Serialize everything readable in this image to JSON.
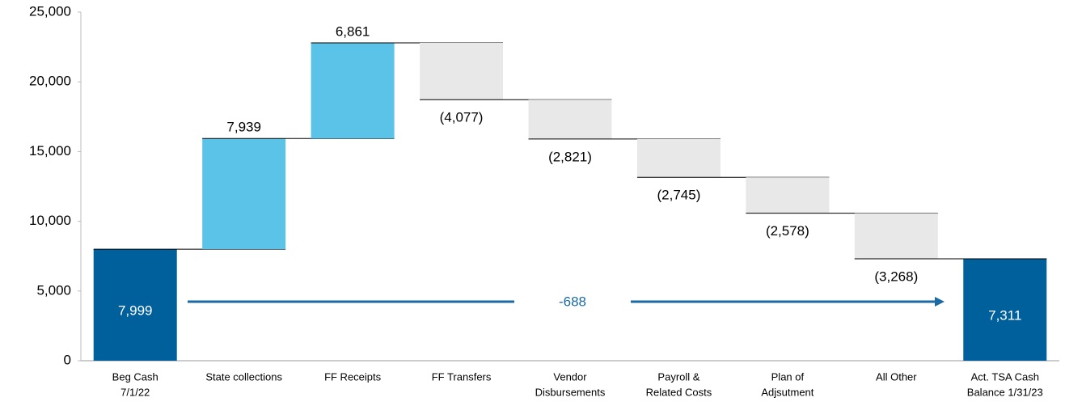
{
  "chart_data": {
    "type": "waterfall",
    "categories": [
      [
        "Beg Cash",
        "7/1/22"
      ],
      [
        "State collections"
      ],
      [
        "FF Receipts"
      ],
      [
        "FF Transfers"
      ],
      [
        "Vendor",
        "Disbursements"
      ],
      [
        "Payroll &",
        "Related Costs"
      ],
      [
        "Plan of",
        "Adjsutment"
      ],
      [
        "All Other"
      ],
      [
        "Act. TSA Cash",
        "Balance 1/31/23"
      ]
    ],
    "values": [
      7999,
      7939,
      6861,
      -4077,
      -2821,
      -2745,
      -2578,
      -3268,
      7311
    ],
    "value_labels": [
      "7,999",
      "7,939",
      "6,861",
      "(4,077)",
      "(2,821)",
      "(2,745)",
      "(2,578)",
      "(3,268)",
      "7,311"
    ],
    "colors": {
      "total": "#00609c",
      "increase": "#5bc3e8",
      "decrease": "#e8e8e8"
    },
    "annotation": "-688",
    "annotation_color": "#1a6aa3",
    "ylim": [
      0,
      25000
    ],
    "yticks": [
      0,
      {
        "value": 5000,
        "label": "5,000"
      },
      {
        "value": 10000,
        "label": "10,000"
      },
      {
        "value": 15000,
        "label": "15,000"
      },
      {
        "value": 20000,
        "label": "20,000"
      },
      {
        "value": 25000,
        "label": "25,000"
      }
    ]
  }
}
